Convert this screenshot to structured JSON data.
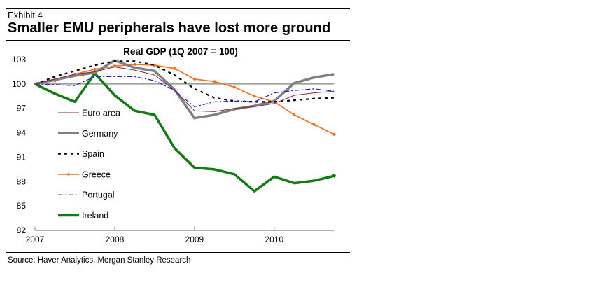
{
  "header": {
    "exhibit": "Exhibit 4",
    "title": "Smaller EMU peripherals have lost more ground"
  },
  "footer": {
    "source": "Source: Haver Analytics, Morgan Stanley Research"
  },
  "chart_data": {
    "type": "line",
    "title": "Real GDP (1Q 2007 = 100)",
    "xlabel": "",
    "ylabel": "",
    "x": [
      "1Q07",
      "2Q07",
      "3Q07",
      "4Q07",
      "1Q08",
      "2Q08",
      "3Q08",
      "4Q08",
      "1Q09",
      "2Q09",
      "3Q09",
      "4Q09",
      "1Q10",
      "2Q10",
      "3Q10",
      "4Q10"
    ],
    "x_tick_labels": [
      "2007",
      "2008",
      "2009",
      "2010"
    ],
    "x_tick_positions": [
      0,
      4,
      8,
      12
    ],
    "ylim": [
      82,
      103
    ],
    "y_ticks": [
      82,
      85,
      88,
      91,
      94,
      97,
      100,
      103
    ],
    "reference_line": 100,
    "grid": false,
    "legend_position": "left-inside",
    "series": [
      {
        "name": "Euro area",
        "color": "#7b2a4a",
        "style": "solid-thin",
        "values": [
          100,
          100.6,
          101.2,
          101.5,
          102.1,
          101.7,
          101.1,
          99.2,
          96.7,
          96.6,
          97.0,
          97.2,
          97.6,
          98.6,
          98.9,
          99.1
        ]
      },
      {
        "name": "Germany",
        "color": "#808080",
        "style": "solid-thick",
        "values": [
          100,
          100.5,
          101.0,
          101.4,
          102.9,
          102.0,
          101.6,
          99.3,
          95.8,
          96.2,
          96.9,
          97.3,
          97.9,
          100.1,
          100.8,
          101.2
        ]
      },
      {
        "name": "Spain",
        "color": "#000000",
        "style": "dashed",
        "values": [
          100,
          100.9,
          101.6,
          102.3,
          102.8,
          102.8,
          102.3,
          101.1,
          99.4,
          98.3,
          97.9,
          97.8,
          97.8,
          98.0,
          98.2,
          98.3
        ]
      },
      {
        "name": "Greece",
        "color": "#ff6a13",
        "style": "solid-markers",
        "values": [
          100,
          100.4,
          101.2,
          101.8,
          102.2,
          102.4,
          102.3,
          101.9,
          100.6,
          100.3,
          99.6,
          98.5,
          97.8,
          96.2,
          95.0,
          93.8
        ]
      },
      {
        "name": "Portugal",
        "color": "#1f1fd6",
        "style": "dash-dot",
        "values": [
          100,
          99.9,
          99.8,
          100.9,
          100.9,
          100.9,
          100.4,
          99.2,
          97.2,
          97.8,
          97.9,
          97.8,
          98.9,
          99.2,
          99.4,
          99.1
        ]
      },
      {
        "name": "Ireland",
        "color": "#0f7d0f",
        "style": "solid-thick",
        "values": [
          100,
          98.8,
          97.8,
          101.3,
          98.6,
          96.7,
          96.2,
          92.1,
          89.7,
          89.5,
          88.9,
          86.8,
          88.6,
          87.8,
          88.1,
          88.7
        ]
      }
    ]
  }
}
